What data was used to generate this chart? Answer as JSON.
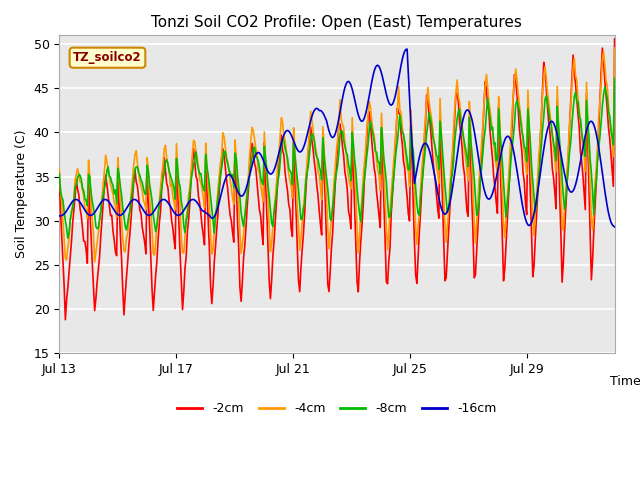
{
  "title": "Tonzi Soil CO2 Profile: Open (East) Temperatures",
  "xlabel": "Time",
  "ylabel": "Soil Temperature (C)",
  "ylim": [
    15,
    51
  ],
  "yticks": [
    15,
    20,
    25,
    30,
    35,
    40,
    45,
    50
  ],
  "legend_label": "TZ_soilco2",
  "colors": {
    "-2cm": "#ff0000",
    "-4cm": "#ff9900",
    "-8cm": "#00bb00",
    "-16cm": "#0000cc"
  },
  "plot_bg": "#e8e8e8",
  "grid_color": "#ffffff",
  "x_tick_days": [
    13,
    17,
    21,
    25,
    29
  ],
  "n_days": 19
}
